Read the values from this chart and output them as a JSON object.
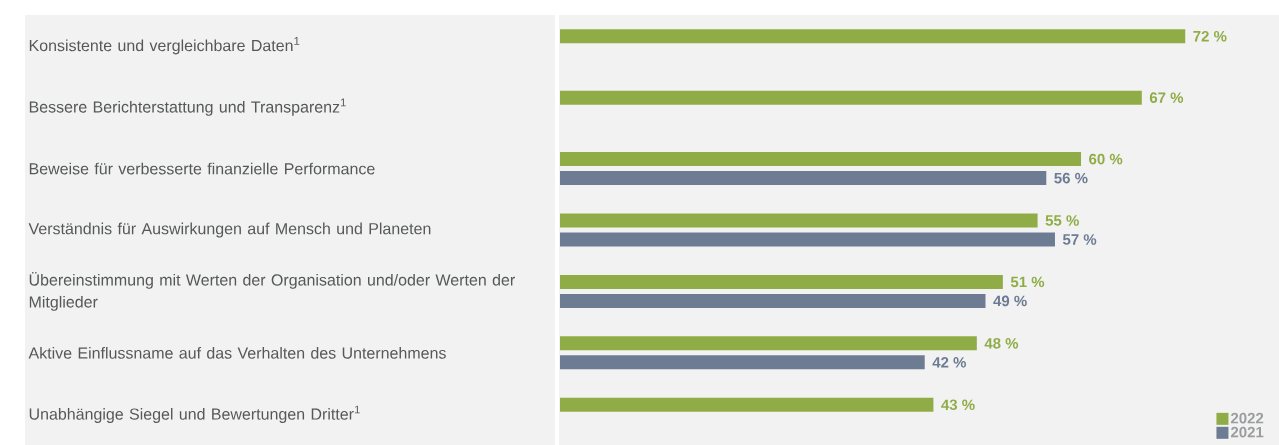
{
  "chart_data": {
    "type": "bar",
    "orientation": "horizontal",
    "categories": [
      "Konsistente und vergleichbare Daten$^{1}$",
      "Bessere Berichterstattung und Transparenz$^{1}$",
      "Beweise für verbesserte finanzielle Performance",
      "Verständnis für Auswirkungen auf Mensch und Planeten",
      "Übereinstimmung mit Werten der Organisation und/oder Werten der Mitglieder",
      "Aktive Einflussname auf das Verhalten des Unternehmens",
      "Unabhängige Siegel und Bewertungen Dritter$^{1}$"
    ],
    "series": [
      {
        "name": "2022",
        "color": "#8fac46",
        "values": [
          72,
          67,
          60,
          55,
          51,
          48,
          43
        ],
        "value_labels": [
          "72 %",
          "67 %",
          "60 %",
          "55 %",
          "51 %",
          "48 %",
          "43 %"
        ]
      },
      {
        "name": "2021",
        "color": "#6e7c93",
        "values": [
          null,
          null,
          56,
          57,
          49,
          42,
          null
        ],
        "value_labels": [
          null,
          null,
          "56 %",
          "57 %",
          "49 %",
          "42 %",
          null
        ]
      }
    ],
    "legend": "bottom right"
  }
}
